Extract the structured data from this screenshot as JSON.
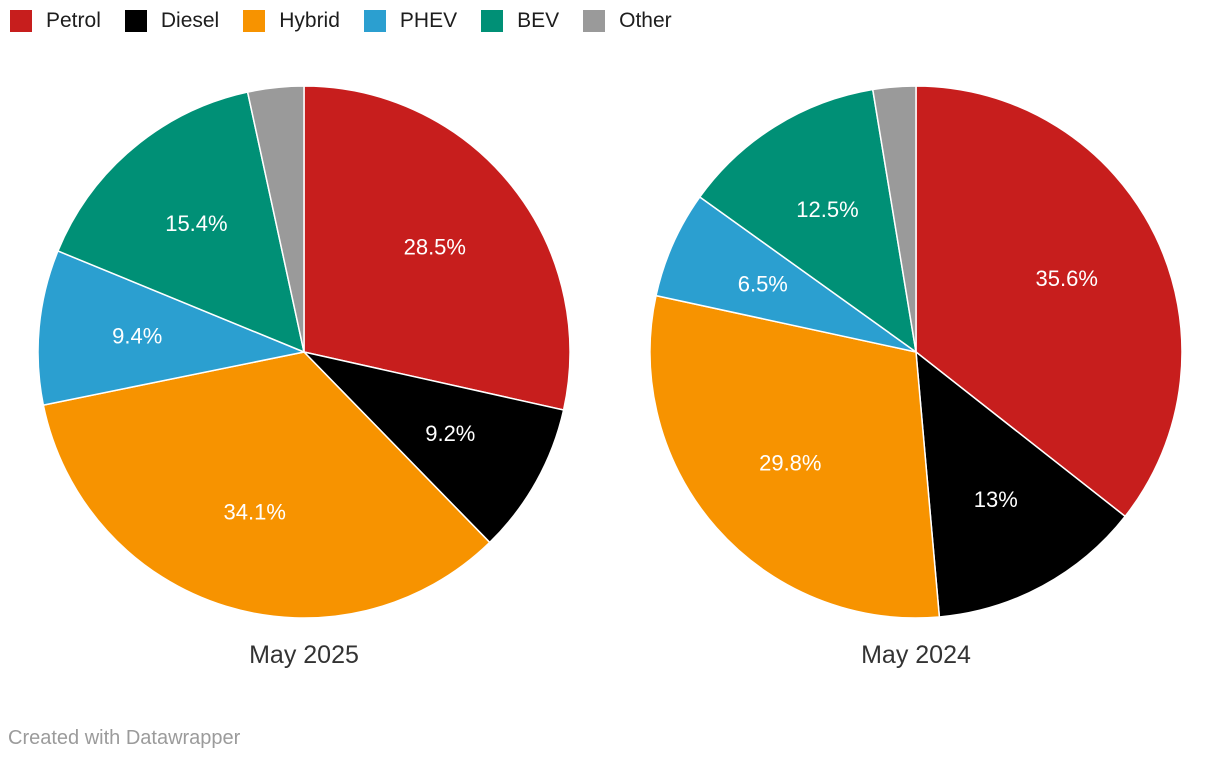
{
  "legend": {
    "items": [
      {
        "label": "Petrol",
        "color": "#c71e1d"
      },
      {
        "label": "Diesel",
        "color": "#000000"
      },
      {
        "label": "Hybrid",
        "color": "#f79300"
      },
      {
        "label": "PHEV",
        "color": "#2b9fd0"
      },
      {
        "label": "BEV",
        "color": "#009076"
      },
      {
        "label": "Other",
        "color": "#9a9a9a"
      }
    ]
  },
  "chart_data": [
    {
      "type": "pie",
      "title": "May 2025",
      "categories": [
        "Petrol",
        "Diesel",
        "Hybrid",
        "PHEV",
        "BEV",
        "Other"
      ],
      "values": [
        28.5,
        9.2,
        34.1,
        9.4,
        15.4,
        3.4
      ],
      "labels": [
        "28.5%",
        "9.2%",
        "34.1%",
        "9.4%",
        "15.4%",
        ""
      ],
      "colors": [
        "#c71e1d",
        "#000000",
        "#f79300",
        "#2b9fd0",
        "#009076",
        "#9a9a9a"
      ],
      "start_angle_deg": 0,
      "direction": "clockwise",
      "legend_position": "top-left"
    },
    {
      "type": "pie",
      "title": "May 2024",
      "categories": [
        "Petrol",
        "Diesel",
        "Hybrid",
        "PHEV",
        "BEV",
        "Other"
      ],
      "values": [
        35.6,
        13,
        29.8,
        6.5,
        12.5,
        2.6
      ],
      "labels": [
        "35.6%",
        "13%",
        "29.8%",
        "6.5%",
        "12.5%",
        ""
      ],
      "colors": [
        "#c71e1d",
        "#000000",
        "#f79300",
        "#2b9fd0",
        "#009076",
        "#9a9a9a"
      ],
      "start_angle_deg": 0,
      "direction": "clockwise",
      "legend_position": "top-left"
    }
  ],
  "footer": {
    "credit": "Created with Datawrapper"
  }
}
